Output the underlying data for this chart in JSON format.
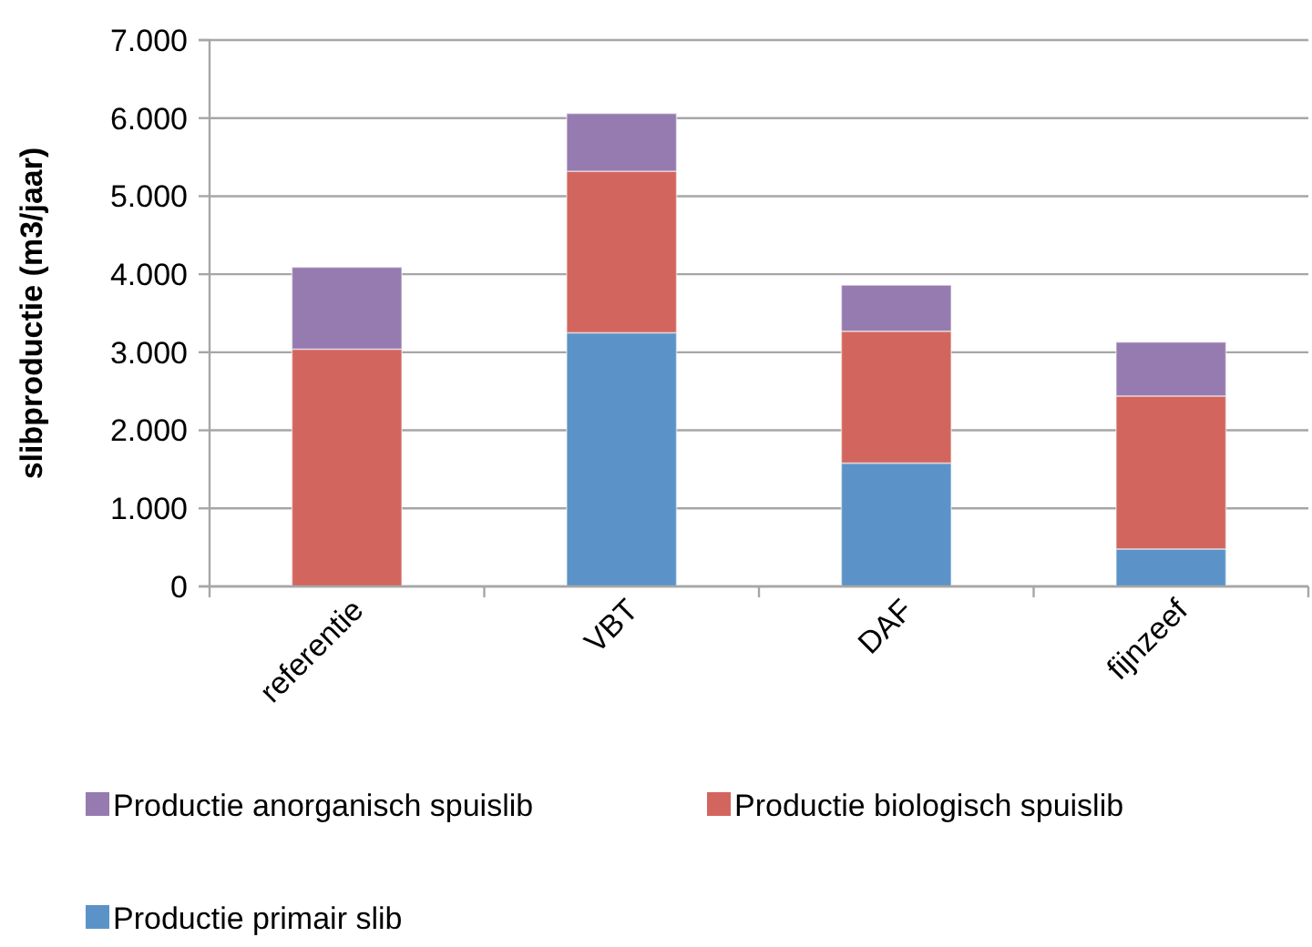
{
  "chart_data": {
    "type": "bar",
    "stacked": true,
    "ylabel": "slibproductie (m3/jaar)",
    "categories": [
      "referentie",
      "VBT",
      "DAF",
      "fijnzeef"
    ],
    "series": [
      {
        "name": "Productie primair slib",
        "color": "#5b93c9",
        "values": [
          0,
          3250,
          1580,
          480
        ]
      },
      {
        "name": "Productie biologisch spuislib",
        "color": "#d2665e",
        "values": [
          3040,
          2070,
          1690,
          1960
        ]
      },
      {
        "name": "Productie anorganisch spuislib",
        "color": "#957bb0",
        "values": [
          1050,
          740,
          590,
          690
        ]
      }
    ],
    "ylim": [
      0,
      7000
    ],
    "yticks": [
      {
        "value": 0,
        "label": "0"
      },
      {
        "value": 1000,
        "label": "1.000"
      },
      {
        "value": 2000,
        "label": "2.000"
      },
      {
        "value": 3000,
        "label": "3.000"
      },
      {
        "value": 4000,
        "label": "4.000"
      },
      {
        "value": 5000,
        "label": "5.000"
      },
      {
        "value": 6000,
        "label": "6.000"
      },
      {
        "value": 7000,
        "label": "7.000"
      }
    ],
    "grid": "y",
    "legend": "bottom"
  }
}
